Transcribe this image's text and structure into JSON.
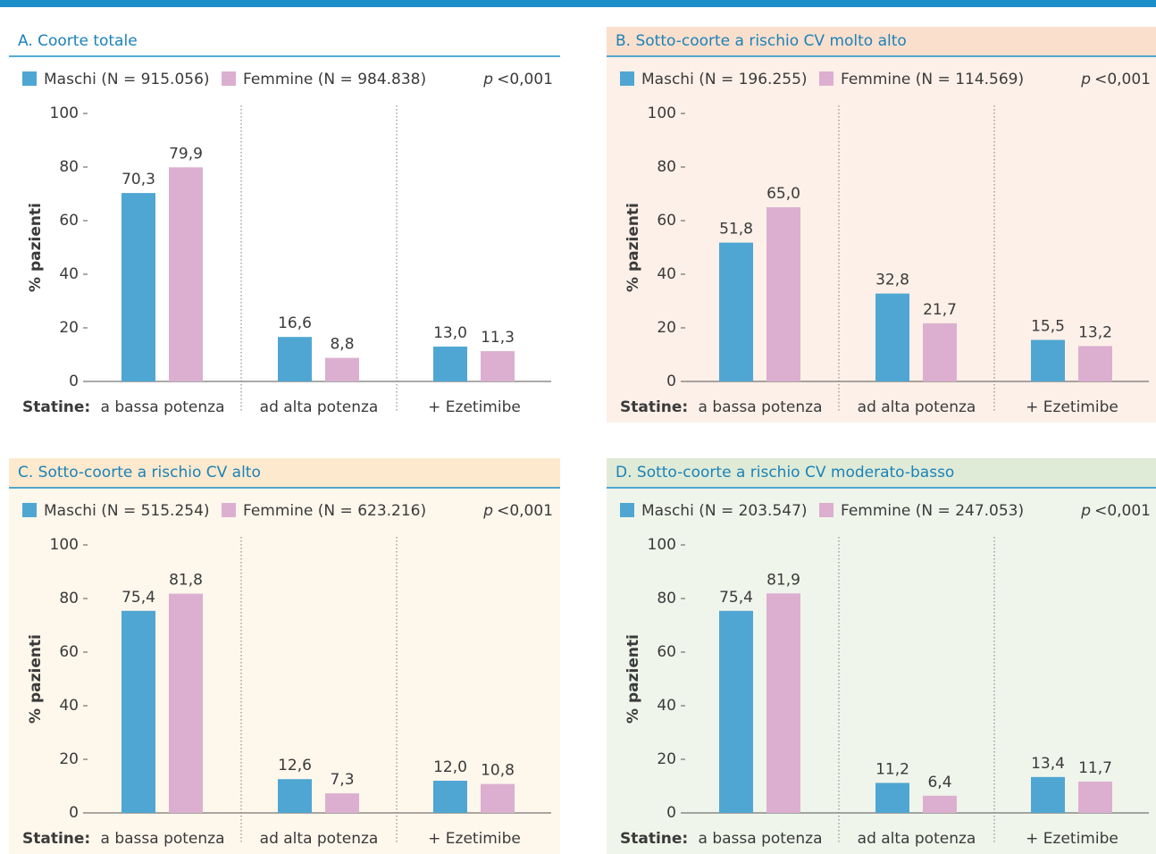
{
  "chart_data": [
    {
      "type": "bar",
      "title": "A. Coorte totale",
      "background": "#ffffff",
      "header_color": "#ffffff",
      "annotation": [
        "p",
        "<0,001"
      ],
      "y_label": "% pazienti",
      "x_label": "Statine:",
      "categories": [
        "a bassa potenza",
        "ad alta potenza",
        "+ Ezetimibe"
      ],
      "series": [
        {
          "name": "Maschi (N = 915.056)",
          "color": "#4fa6d2",
          "values": [
            70.3,
            16.6,
            13.0
          ],
          "value_labels": [
            "70,3",
            "16,6",
            "13,0"
          ]
        },
        {
          "name": "Femmine (N = 984.838)",
          "color": "#dcafd0",
          "values": [
            79.9,
            8.8,
            11.3
          ],
          "value_labels": [
            "79,9",
            "8,8",
            "11,3"
          ]
        }
      ],
      "ylim": [
        0,
        100
      ],
      "yticks": [
        0,
        20,
        40,
        60,
        80,
        100
      ]
    },
    {
      "type": "bar",
      "title": "B. Sotto-coorte a rischio CV molto alto",
      "background": "#fdf0e8",
      "header_color": "#fbdfcd",
      "annotation": [
        "p",
        "<0,001"
      ],
      "y_label": "% pazienti",
      "x_label": "Statine:",
      "categories": [
        "a bassa potenza",
        "ad alta potenza",
        "+ Ezetimibe"
      ],
      "series": [
        {
          "name": "Maschi (N = 196.255)",
          "color": "#4fa6d2",
          "values": [
            51.8,
            32.8,
            15.5
          ],
          "value_labels": [
            "51,8",
            "32,8",
            "15,5"
          ]
        },
        {
          "name": "Femmine (N = 114.569)",
          "color": "#dcafd0",
          "values": [
            65.0,
            21.7,
            13.2
          ],
          "value_labels": [
            "65,0",
            "21,7",
            "13,2"
          ]
        }
      ],
      "ylim": [
        0,
        100
      ],
      "yticks": [
        0,
        20,
        40,
        60,
        80,
        100
      ]
    },
    {
      "type": "bar",
      "title": "C. Sotto-coorte a rischio CV alto",
      "background": "#fef7ec",
      "header_color": "#fde9cd",
      "annotation": [
        "p",
        "<0,001"
      ],
      "y_label": "% pazienti",
      "x_label": "Statine:",
      "categories": [
        "a bassa potenza",
        "ad alta potenza",
        "+ Ezetimibe"
      ],
      "series": [
        {
          "name": "Maschi (N = 515.254)",
          "color": "#4fa6d2",
          "values": [
            75.4,
            12.6,
            12.0
          ],
          "value_labels": [
            "75,4",
            "12,6",
            "12,0"
          ]
        },
        {
          "name": "Femmine (N = 623.216)",
          "color": "#dcafd0",
          "values": [
            81.8,
            7.3,
            10.8
          ],
          "value_labels": [
            "81,8",
            "7,3",
            "10,8"
          ]
        }
      ],
      "ylim": [
        0,
        100
      ],
      "yticks": [
        0,
        20,
        40,
        60,
        80,
        100
      ]
    },
    {
      "type": "bar",
      "title": "D. Sotto-coorte a rischio CV moderato-basso",
      "background": "#f0f5eb",
      "header_color": "#e0ebd7",
      "annotation": [
        "p",
        "<0,001"
      ],
      "y_label": "% pazienti",
      "x_label": "Statine:",
      "categories": [
        "a bassa potenza",
        "ad alta potenza",
        "+ Ezetimibe"
      ],
      "series": [
        {
          "name": "Maschi (N = 203.547)",
          "color": "#4fa6d2",
          "values": [
            75.4,
            11.2,
            13.4
          ],
          "value_labels": [
            "75,4",
            "11,2",
            "13,4"
          ]
        },
        {
          "name": "Femmine (N = 247.053)",
          "color": "#dcafd0",
          "values": [
            81.9,
            6.4,
            11.7
          ],
          "value_labels": [
            "81,9",
            "6,4",
            "11,7"
          ]
        }
      ],
      "ylim": [
        0,
        100
      ],
      "yticks": [
        0,
        20,
        40,
        60,
        80,
        100
      ]
    }
  ]
}
